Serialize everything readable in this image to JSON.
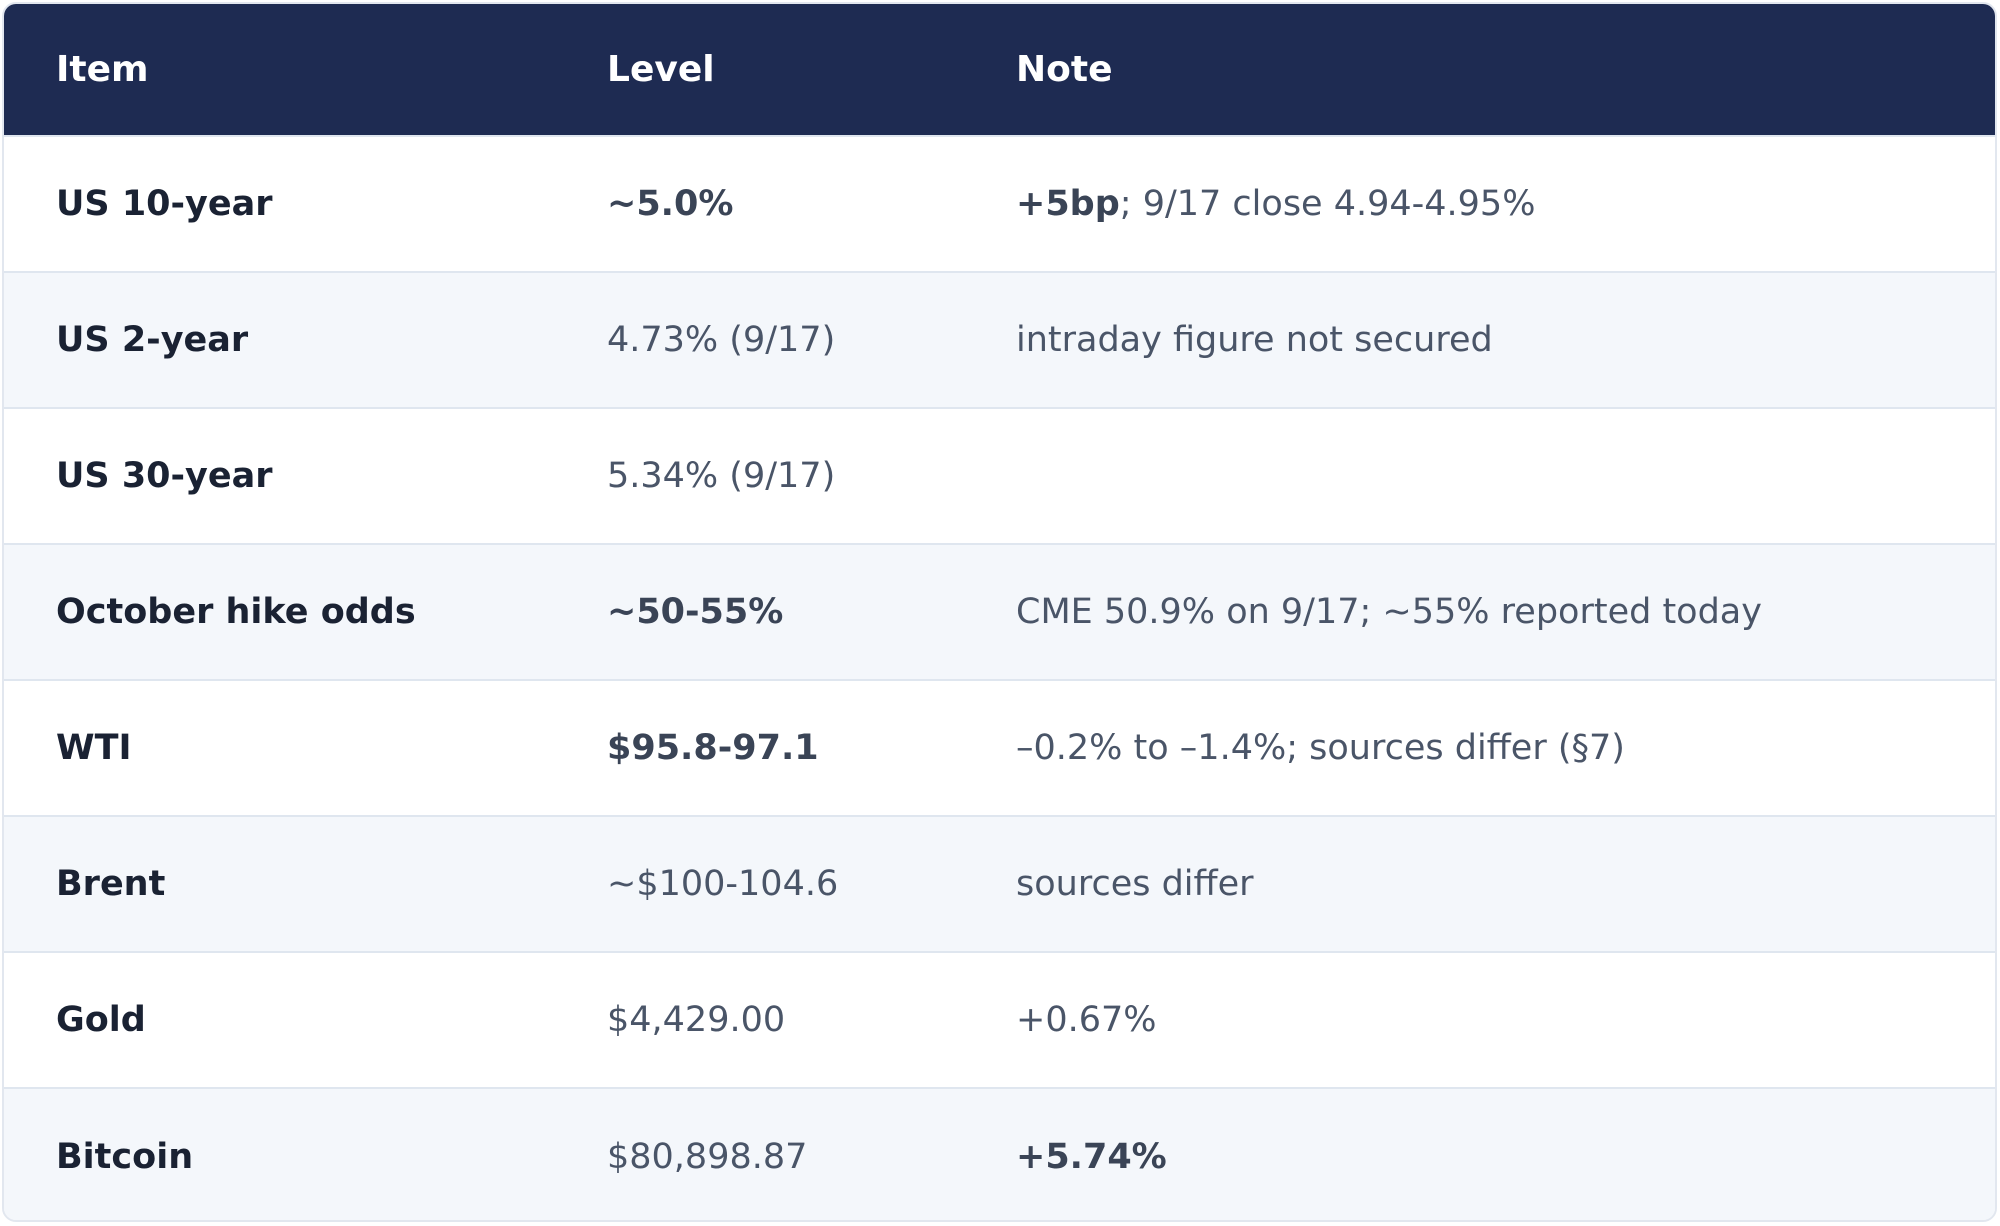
{
  "headers": {
    "item": "Item",
    "level": "Level",
    "note": "Note"
  },
  "rows": [
    {
      "item": "US 10-year",
      "level": "~5.0%",
      "note_bold": "+5bp",
      "note": "; 9/17 close 4.94-4.95%"
    },
    {
      "item": "US 2-year",
      "level": "4.73% (9/17)",
      "note_bold": "",
      "note": "intraday figure not secured"
    },
    {
      "item": "US 30-year",
      "level": "5.34% (9/17)",
      "note_bold": "",
      "note": ""
    },
    {
      "item": "October hike odds",
      "level": "~50-55%",
      "note_bold": "",
      "note": "CME 50.9% on 9/17; ~55% reported today"
    },
    {
      "item": "WTI",
      "level": "$95.8-97.1",
      "note_bold": "",
      "note": "–0.2% to –1.4%; sources differ (§7)"
    },
    {
      "item": "Brent",
      "level": "~$100-104.6",
      "note_bold": "",
      "note": "sources differ"
    },
    {
      "item": "Gold",
      "level": "$4,429.00",
      "note_bold": "",
      "note": "+0.67%"
    },
    {
      "item": "Bitcoin",
      "level": "$80,898.87",
      "note_bold": "+5.74%",
      "note": ""
    }
  ],
  "colors": {
    "header_bg": "#1e2b52",
    "row_alt_bg": "#f4f7fb",
    "border": "#e2e7ef"
  }
}
